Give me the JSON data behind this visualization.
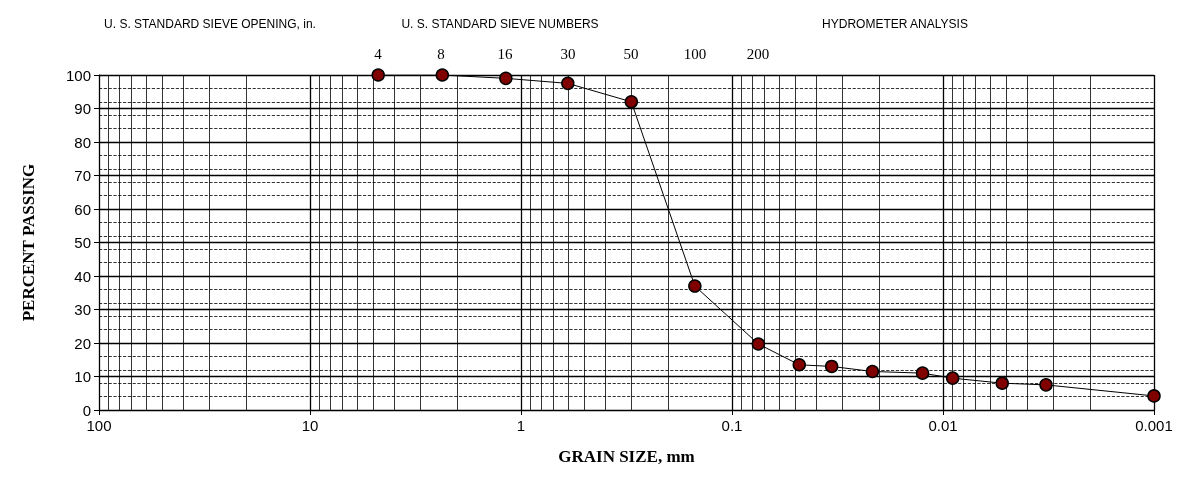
{
  "chart_data": {
    "type": "line",
    "xlabel": "GRAIN SIZE, mm",
    "ylabel": "PERCENT PASSING",
    "annotations": [
      "U. S. STANDARD SIEVE OPENING, in.",
      "U. S. STANDARD SIEVE NUMBERS",
      "HYDROMETER ANALYSIS",
      "4",
      "8",
      "16",
      "30",
      "50",
      "100",
      "200"
    ],
    "log": "x",
    "xlim": [
      100,
      0.001
    ],
    "xticks": [
      100,
      10,
      1,
      0.1,
      0.01,
      0.001
    ],
    "ylim": [
      0,
      100
    ],
    "yticks": [
      0,
      10,
      20,
      30,
      40,
      50,
      60,
      70,
      80,
      90,
      100
    ],
    "grid": true,
    "marker": "circle",
    "line_style": "solid",
    "series": [
      {
        "color": "#800000",
        "x": [
          4.75,
          2.36,
          1.18,
          0.6,
          0.3,
          0.15,
          0.075,
          0.048,
          0.0337,
          0.0216,
          0.0125,
          0.009,
          0.00524,
          0.00325,
          0.001
        ],
        "values": [
          100,
          100,
          99,
          97.5,
          92,
          37,
          19.7,
          13.5,
          13,
          11.5,
          11,
          9.5,
          8,
          7.5,
          4.2
        ]
      }
    ]
  }
}
